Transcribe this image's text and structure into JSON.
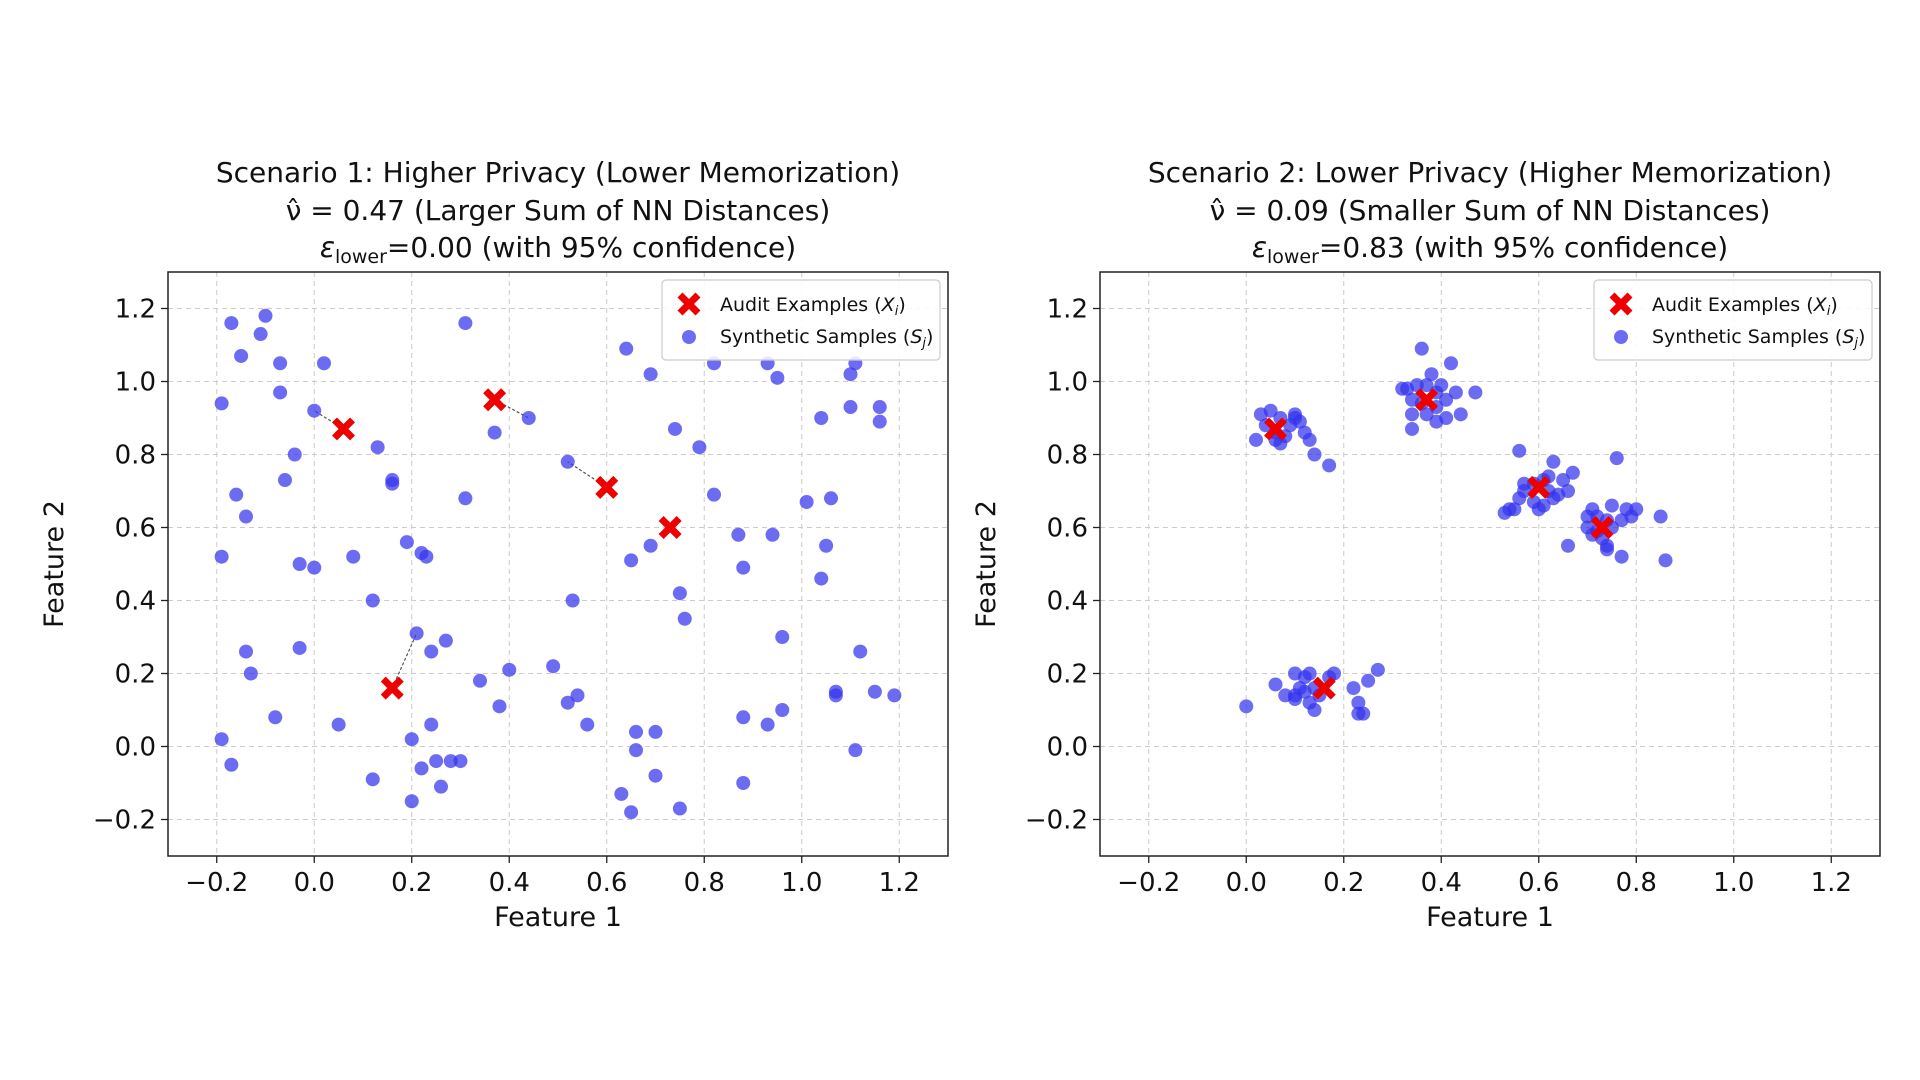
{
  "colors": {
    "audit": "#ee0000",
    "synthetic": "#3333ee",
    "grid": "#cccccc",
    "link": "#555555"
  },
  "chart_data": [
    {
      "type": "scatter",
      "title": "Scenario 1: Higher Privacy (Lower Memorization)",
      "nu_prefix": "ν̂ = ",
      "nu_value": "0.47",
      "nu_suffix": " (Larger Sum of NN Distances)",
      "eps_symbol": "ε",
      "eps_sub": "lower",
      "eps_text": "=0.00 (with 95% confidence)",
      "xlabel": "Feature 1",
      "ylabel": "Feature 2",
      "xlim": [
        -0.3,
        1.3
      ],
      "ylim": [
        -0.3,
        1.3
      ],
      "xticks": [
        -0.2,
        0.0,
        0.2,
        0.4,
        0.6,
        0.8,
        1.0,
        1.2
      ],
      "yticks": [
        -0.2,
        0.0,
        0.2,
        0.4,
        0.6,
        0.8,
        1.0,
        1.2
      ],
      "xtick_labels": [
        "−0.2",
        "0.0",
        "0.2",
        "0.4",
        "0.6",
        "0.8",
        "1.0",
        "1.2"
      ],
      "ytick_labels": [
        "−0.2",
        "0.0",
        "0.2",
        "0.4",
        "0.6",
        "0.8",
        "1.0",
        "1.2"
      ],
      "grid": true,
      "legend_position": "top-right",
      "legend": [
        {
          "label": "Audit Examples (",
          "sym": "X",
          "sub": "i",
          "marker": "x"
        },
        {
          "label": "Synthetic Samples (",
          "sym": "S",
          "sub": "j",
          "marker": "o"
        }
      ],
      "audit": [
        [
          0.06,
          0.87
        ],
        [
          0.37,
          0.95
        ],
        [
          0.6,
          0.71
        ],
        [
          0.73,
          0.6
        ],
        [
          0.16,
          0.16
        ]
      ],
      "links": [
        [
          [
            0.06,
            0.87
          ],
          [
            0.0,
            0.92
          ]
        ],
        [
          [
            0.37,
            0.95
          ],
          [
            0.44,
            0.9
          ]
        ],
        [
          [
            0.6,
            0.71
          ],
          [
            0.52,
            0.78
          ]
        ],
        [
          [
            0.16,
            0.16
          ],
          [
            0.21,
            0.31
          ]
        ]
      ],
      "synthetic": [
        [
          -0.17,
          1.16
        ],
        [
          -0.1,
          1.18
        ],
        [
          -0.11,
          1.13
        ],
        [
          -0.15,
          1.07
        ],
        [
          -0.07,
          1.05
        ],
        [
          0.02,
          1.05
        ],
        [
          -0.19,
          0.94
        ],
        [
          -0.07,
          0.97
        ],
        [
          0.0,
          0.92
        ],
        [
          0.31,
          1.16
        ],
        [
          -0.04,
          0.8
        ],
        [
          -0.06,
          0.73
        ],
        [
          -0.16,
          0.69
        ],
        [
          -0.14,
          0.63
        ],
        [
          0.13,
          0.82
        ],
        [
          0.16,
          0.72
        ],
        [
          0.16,
          0.73
        ],
        [
          0.31,
          0.68
        ],
        [
          0.37,
          0.86
        ],
        [
          0.44,
          0.9
        ],
        [
          -0.19,
          0.52
        ],
        [
          -0.03,
          0.5
        ],
        [
          0.0,
          0.49
        ],
        [
          0.08,
          0.52
        ],
        [
          0.19,
          0.56
        ],
        [
          0.22,
          0.53
        ],
        [
          0.23,
          0.52
        ],
        [
          0.12,
          0.4
        ],
        [
          -0.14,
          0.26
        ],
        [
          -0.13,
          0.2
        ],
        [
          -0.03,
          0.27
        ],
        [
          0.21,
          0.31
        ],
        [
          0.24,
          0.26
        ],
        [
          0.27,
          0.29
        ],
        [
          -0.08,
          0.08
        ],
        [
          0.05,
          0.06
        ],
        [
          -0.19,
          0.02
        ],
        [
          -0.17,
          -0.05
        ],
        [
          0.12,
          -0.09
        ],
        [
          0.2,
          0.02
        ],
        [
          0.24,
          0.06
        ],
        [
          0.22,
          -0.06
        ],
        [
          0.25,
          -0.04
        ],
        [
          0.28,
          -0.04
        ],
        [
          0.3,
          -0.04
        ],
        [
          0.26,
          -0.11
        ],
        [
          0.2,
          -0.15
        ],
        [
          0.34,
          0.18
        ],
        [
          0.4,
          0.21
        ],
        [
          0.38,
          0.11
        ],
        [
          0.49,
          0.22
        ],
        [
          0.52,
          0.12
        ],
        [
          0.54,
          0.14
        ],
        [
          0.56,
          0.06
        ],
        [
          0.53,
          0.4
        ],
        [
          0.52,
          0.78
        ],
        [
          0.64,
          1.09
        ],
        [
          0.69,
          1.02
        ],
        [
          0.82,
          1.05
        ],
        [
          0.74,
          0.87
        ],
        [
          0.79,
          0.82
        ],
        [
          0.82,
          0.69
        ],
        [
          0.69,
          0.55
        ],
        [
          0.65,
          0.51
        ],
        [
          0.75,
          0.42
        ],
        [
          0.76,
          0.35
        ],
        [
          0.87,
          0.58
        ],
        [
          0.88,
          0.49
        ],
        [
          0.94,
          0.58
        ],
        [
          0.93,
          1.05
        ],
        [
          0.95,
          1.01
        ],
        [
          1.04,
          0.9
        ],
        [
          1.1,
          1.02
        ],
        [
          1.11,
          1.05
        ],
        [
          1.1,
          0.93
        ],
        [
          1.16,
          0.93
        ],
        [
          1.16,
          0.89
        ],
        [
          1.01,
          0.67
        ],
        [
          1.06,
          0.68
        ],
        [
          1.05,
          0.55
        ],
        [
          1.04,
          0.46
        ],
        [
          0.96,
          0.3
        ],
        [
          1.12,
          0.26
        ],
        [
          1.07,
          0.15
        ],
        [
          1.07,
          0.14
        ],
        [
          1.15,
          0.15
        ],
        [
          1.19,
          0.14
        ],
        [
          0.96,
          0.1
        ],
        [
          0.93,
          0.06
        ],
        [
          0.88,
          0.08
        ],
        [
          0.66,
          0.04
        ],
        [
          0.7,
          0.04
        ],
        [
          0.66,
          -0.01
        ],
        [
          0.7,
          -0.08
        ],
        [
          0.63,
          -0.13
        ],
        [
          0.65,
          -0.18
        ],
        [
          0.75,
          -0.17
        ],
        [
          0.88,
          -0.1
        ],
        [
          1.11,
          -0.01
        ]
      ]
    },
    {
      "type": "scatter",
      "title": "Scenario 2: Lower Privacy (Higher Memorization)",
      "nu_prefix": "ν̂ = ",
      "nu_value": "0.09",
      "nu_suffix": " (Smaller Sum of NN Distances)",
      "eps_symbol": "ε",
      "eps_sub": "lower",
      "eps_text": "=0.83 (with 95% confidence)",
      "xlabel": "Feature 1",
      "ylabel": "Feature 2",
      "xlim": [
        -0.3,
        1.3
      ],
      "ylim": [
        -0.3,
        1.3
      ],
      "xticks": [
        -0.2,
        0.0,
        0.2,
        0.4,
        0.6,
        0.8,
        1.0,
        1.2
      ],
      "yticks": [
        -0.2,
        0.0,
        0.2,
        0.4,
        0.6,
        0.8,
        1.0,
        1.2
      ],
      "xtick_labels": [
        "−0.2",
        "0.0",
        "0.2",
        "0.4",
        "0.6",
        "0.8",
        "1.0",
        "1.2"
      ],
      "ytick_labels": [
        "−0.2",
        "0.0",
        "0.2",
        "0.4",
        "0.6",
        "0.8",
        "1.0",
        "1.2"
      ],
      "grid": true,
      "legend_position": "top-right",
      "legend": [
        {
          "label": "Audit Examples (",
          "sym": "X",
          "sub": "i",
          "marker": "x"
        },
        {
          "label": "Synthetic Samples (",
          "sym": "S",
          "sub": "j",
          "marker": "o"
        }
      ],
      "audit": [
        [
          0.06,
          0.87
        ],
        [
          0.37,
          0.95
        ],
        [
          0.6,
          0.71
        ],
        [
          0.73,
          0.6
        ],
        [
          0.16,
          0.16
        ]
      ],
      "links": [],
      "synthetic": [
        [
          0.03,
          0.91
        ],
        [
          0.05,
          0.92
        ],
        [
          0.07,
          0.9
        ],
        [
          0.1,
          0.91
        ],
        [
          0.04,
          0.88
        ],
        [
          0.06,
          0.86
        ],
        [
          0.08,
          0.85
        ],
        [
          0.06,
          0.84
        ],
        [
          0.09,
          0.88
        ],
        [
          0.11,
          0.89
        ],
        [
          0.02,
          0.84
        ],
        [
          0.07,
          0.83
        ],
        [
          0.12,
          0.86
        ],
        [
          0.13,
          0.84
        ],
        [
          0.14,
          0.8
        ],
        [
          0.17,
          0.77
        ],
        [
          0.1,
          0.9
        ],
        [
          0.36,
          1.09
        ],
        [
          0.42,
          1.05
        ],
        [
          0.38,
          1.02
        ],
        [
          0.32,
          0.98
        ],
        [
          0.35,
          0.99
        ],
        [
          0.37,
          0.99
        ],
        [
          0.4,
          0.99
        ],
        [
          0.39,
          0.97
        ],
        [
          0.43,
          0.97
        ],
        [
          0.47,
          0.97
        ],
        [
          0.34,
          0.95
        ],
        [
          0.36,
          0.94
        ],
        [
          0.39,
          0.93
        ],
        [
          0.41,
          0.95
        ],
        [
          0.34,
          0.91
        ],
        [
          0.37,
          0.91
        ],
        [
          0.41,
          0.9
        ],
        [
          0.44,
          0.91
        ],
        [
          0.39,
          0.89
        ],
        [
          0.34,
          0.87
        ],
        [
          0.33,
          0.98
        ],
        [
          0.56,
          0.81
        ],
        [
          0.63,
          0.78
        ],
        [
          0.57,
          0.72
        ],
        [
          0.59,
          0.72
        ],
        [
          0.61,
          0.73
        ],
        [
          0.62,
          0.74
        ],
        [
          0.65,
          0.73
        ],
        [
          0.67,
          0.75
        ],
        [
          0.57,
          0.7
        ],
        [
          0.62,
          0.7
        ],
        [
          0.64,
          0.69
        ],
        [
          0.66,
          0.7
        ],
        [
          0.56,
          0.68
        ],
        [
          0.59,
          0.67
        ],
        [
          0.61,
          0.66
        ],
        [
          0.6,
          0.65
        ],
        [
          0.54,
          0.65
        ],
        [
          0.55,
          0.65
        ],
        [
          0.53,
          0.64
        ],
        [
          0.63,
          0.68
        ],
        [
          0.76,
          0.79
        ],
        [
          0.71,
          0.65
        ],
        [
          0.75,
          0.66
        ],
        [
          0.78,
          0.65
        ],
        [
          0.8,
          0.65
        ],
        [
          0.7,
          0.63
        ],
        [
          0.72,
          0.63
        ],
        [
          0.74,
          0.62
        ],
        [
          0.77,
          0.62
        ],
        [
          0.79,
          0.63
        ],
        [
          0.7,
          0.6
        ],
        [
          0.72,
          0.59
        ],
        [
          0.75,
          0.6
        ],
        [
          0.71,
          0.58
        ],
        [
          0.73,
          0.57
        ],
        [
          0.74,
          0.55
        ],
        [
          0.74,
          0.54
        ],
        [
          0.66,
          0.55
        ],
        [
          0.77,
          0.52
        ],
        [
          0.85,
          0.63
        ],
        [
          0.86,
          0.51
        ],
        [
          0.0,
          0.11
        ],
        [
          0.06,
          0.17
        ],
        [
          0.08,
          0.14
        ],
        [
          0.1,
          0.2
        ],
        [
          0.12,
          0.19
        ],
        [
          0.13,
          0.2
        ],
        [
          0.11,
          0.16
        ],
        [
          0.12,
          0.15
        ],
        [
          0.14,
          0.16
        ],
        [
          0.1,
          0.14
        ],
        [
          0.13,
          0.12
        ],
        [
          0.15,
          0.14
        ],
        [
          0.14,
          0.1
        ],
        [
          0.18,
          0.2
        ],
        [
          0.17,
          0.19
        ],
        [
          0.22,
          0.16
        ],
        [
          0.23,
          0.12
        ],
        [
          0.25,
          0.18
        ],
        [
          0.27,
          0.21
        ],
        [
          0.23,
          0.09
        ],
        [
          0.24,
          0.09
        ],
        [
          0.1,
          0.13
        ]
      ]
    }
  ]
}
